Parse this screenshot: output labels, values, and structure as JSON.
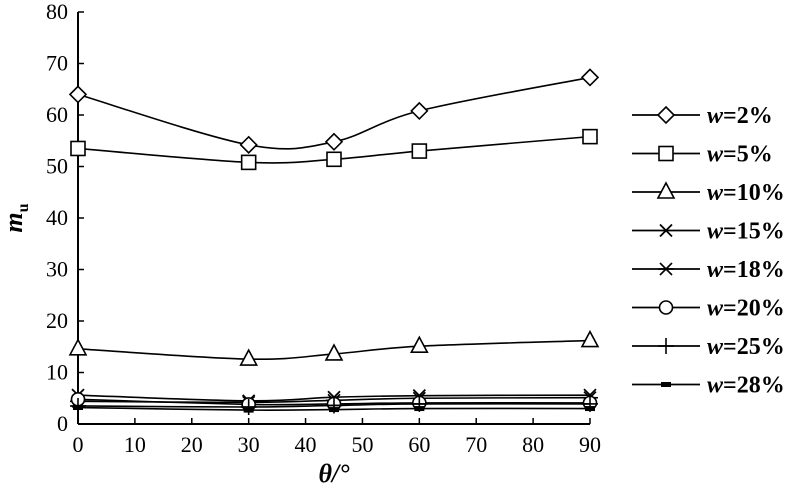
{
  "chart_data": {
    "type": "line",
    "xlabel": "θ/°",
    "ylabel": "m",
    "ylabel_sub": "u",
    "xlim": [
      0,
      90
    ],
    "ylim": [
      0,
      80
    ],
    "xticks": [
      0,
      10,
      20,
      30,
      40,
      50,
      60,
      70,
      80,
      90
    ],
    "yticks": [
      0,
      10,
      20,
      30,
      40,
      50,
      60,
      70,
      80
    ],
    "grid": false,
    "legend_position": "right",
    "x": [
      0,
      30,
      45,
      60,
      90
    ],
    "series": [
      {
        "name": "w=2%",
        "name_var": "w",
        "name_rest": "=2%",
        "marker": "diamond",
        "values": [
          64,
          54.2,
          54.8,
          60.8,
          67.3
        ]
      },
      {
        "name": "w=5%",
        "name_var": "w",
        "name_rest": "=5%",
        "marker": "square",
        "values": [
          53.5,
          50.8,
          51.4,
          53.0,
          55.8
        ]
      },
      {
        "name": "w=10%",
        "name_var": "w",
        "name_rest": "=10%",
        "marker": "triangle",
        "values": [
          14.6,
          12.6,
          13.6,
          15.1,
          16.2
        ]
      },
      {
        "name": "w=15%",
        "name_var": "w",
        "name_rest": "=15%",
        "marker": "x",
        "values": [
          5.6,
          4.5,
          5.2,
          5.5,
          5.6
        ]
      },
      {
        "name": "w=18%",
        "name_var": "w",
        "name_rest": "=18%",
        "marker": "asterisk",
        "values": [
          4.4,
          4.2,
          4.6,
          5.0,
          5.1
        ]
      },
      {
        "name": "w=20%",
        "name_var": "w",
        "name_rest": "=20%",
        "marker": "circle",
        "values": [
          4.8,
          3.8,
          3.9,
          4.1,
          4.1
        ]
      },
      {
        "name": "w=25%",
        "name_var": "w",
        "name_rest": "=25%",
        "marker": "plus",
        "values": [
          3.5,
          3.3,
          3.6,
          3.9,
          3.9
        ]
      },
      {
        "name": "w=28%",
        "name_var": "w",
        "name_rest": "=28%",
        "marker": "dash",
        "values": [
          3.2,
          2.7,
          2.8,
          3.0,
          3.0
        ]
      }
    ]
  }
}
